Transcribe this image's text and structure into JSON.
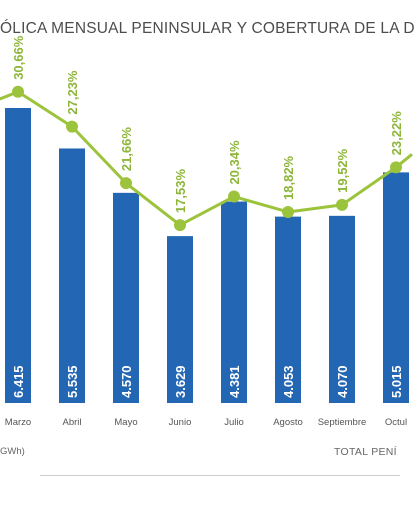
{
  "title": "ÓLICA MENSUAL PENINSULAR Y COBERTURA DE LA D",
  "colors": {
    "bar": "#2366b4",
    "line": "#9cc33c",
    "bar_label": "#ffffff",
    "pct_label": "#8db63a"
  },
  "chart_data": {
    "type": "bar",
    "categories": [
      "Marzo",
      "Abril",
      "Mayo",
      "Junio",
      "Julio",
      "Agosto",
      "Septiembre",
      "Octubre"
    ],
    "category_labels": [
      "Marzo",
      "Abril",
      "Mayo",
      "Junio",
      "Julio",
      "Agosto",
      "Septiembre",
      "Octul"
    ],
    "series": [
      {
        "type": "bar",
        "values": [
          6415,
          5535,
          4570,
          3629,
          4381,
          4053,
          4070,
          5015
        ],
        "labels": [
          "6.415",
          "5.535",
          "4.570",
          "3.629",
          "4.381",
          "4.053",
          "4.070",
          "5.015"
        ]
      },
      {
        "type": "line",
        "values": [
          30.66,
          27.23,
          21.66,
          17.53,
          20.34,
          18.82,
          19.52,
          23.22
        ],
        "labels": [
          "30,66%",
          "27,23%",
          "21,66%",
          "17,53%",
          "20,34%",
          "18,82%",
          "19,52%",
          "23,22%"
        ]
      }
    ],
    "ylabel_left": "GWh)",
    "note_right": "TOTAL PENÍ",
    "legend": "none",
    "grid": false
  }
}
